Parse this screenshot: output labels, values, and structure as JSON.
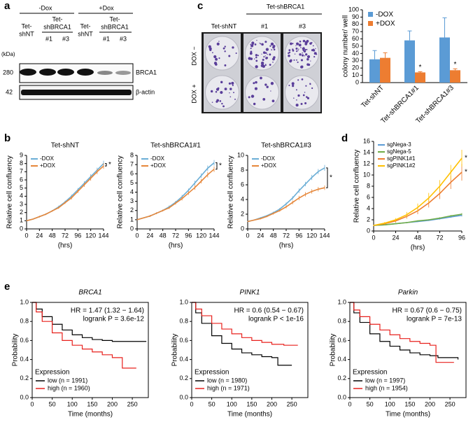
{
  "panel_labels": [
    "a",
    "b",
    "c",
    "d",
    "e"
  ],
  "blot": {
    "groups": [
      "-Dox",
      "+Dox"
    ],
    "lanes": [
      [
        "Tet-",
        "shNT"
      ],
      [
        "Tet-",
        "shBRCA1"
      ],
      [
        "Tet-",
        "shNT"
      ],
      [
        "Tet-",
        "shBRCA1"
      ]
    ],
    "clones": [
      "#1",
      "#3",
      "#1",
      "#3"
    ],
    "unit": "(kDa)",
    "markers": [
      "280",
      "42"
    ],
    "proteins": [
      "BRCA1",
      "β-actin"
    ]
  },
  "colony": {
    "group": "Tet-shBRCA1",
    "columns": [
      "Tet-shNT",
      "#1",
      "#3"
    ],
    "rows": [
      "DOX −",
      "DOX +"
    ]
  },
  "chart_data": [
    {
      "type": "bar",
      "y_label": "colony number/ well",
      "categories": [
        "Tet-shNT",
        "Tet-shBRCA1#1",
        "Tet-shBRCA1#3"
      ],
      "series": [
        {
          "name": "-DOX",
          "color": "#5b9bd5",
          "values": [
            32,
            58,
            62
          ],
          "errors": [
            12,
            13,
            27
          ],
          "annotations": [
            null,
            null,
            null
          ]
        },
        {
          "name": "+DOX",
          "color": "#ed7d31",
          "values": [
            34,
            14,
            17
          ],
          "errors": [
            7,
            1,
            2
          ],
          "annotations": [
            null,
            "*",
            "*"
          ]
        }
      ],
      "ylim": [
        0,
        100
      ],
      "yticks": [
        0,
        10,
        20,
        30,
        40,
        50,
        60,
        70,
        80,
        90,
        100
      ],
      "legend": "top-left"
    },
    {
      "type": "line",
      "title": "Tet-shNT",
      "y_label": "Relative cell confluency",
      "x_label": "(hrs)",
      "annotation": "*",
      "x": [
        0,
        12,
        24,
        36,
        48,
        60,
        72,
        84,
        96,
        108,
        120,
        132,
        144
      ],
      "series": [
        {
          "name": "-DOX",
          "color": "#6baed6",
          "values": [
            1.0,
            1.2,
            1.5,
            1.8,
            2.2,
            2.7,
            3.3,
            4.0,
            4.8,
            5.6,
            6.4,
            7.2,
            8.0
          ],
          "errors": [
            0.05,
            0.05,
            0.1,
            0.1,
            0.1,
            0.15,
            0.15,
            0.2,
            0.2,
            0.25,
            0.3,
            0.3,
            0.35
          ]
        },
        {
          "name": "+DOX",
          "color": "#e6873a",
          "values": [
            1.0,
            1.2,
            1.5,
            1.8,
            2.2,
            2.6,
            3.2,
            3.8,
            4.6,
            5.4,
            6.2,
            7.0,
            7.7
          ],
          "errors": [
            0.05,
            0.05,
            0.1,
            0.1,
            0.1,
            0.15,
            0.15,
            0.2,
            0.2,
            0.25,
            0.3,
            0.3,
            0.35
          ]
        }
      ],
      "xlim": [
        0,
        144
      ],
      "xticks": [
        0,
        24,
        48,
        72,
        96,
        120,
        144
      ],
      "ylim": [
        0,
        9
      ],
      "yticks": [
        0,
        1,
        2,
        3,
        4,
        5,
        6,
        7,
        8,
        9
      ],
      "legend": "top-left"
    },
    {
      "type": "line",
      "title": "Tet-shBRCA1#1",
      "y_label": "Relative cell confluency",
      "x_label": "(hrs)",
      "annotation": "*",
      "x": [
        0,
        12,
        24,
        36,
        48,
        60,
        72,
        84,
        96,
        108,
        120,
        132,
        144
      ],
      "series": [
        {
          "name": "-DOX",
          "color": "#6baed6",
          "values": [
            1.0,
            1.2,
            1.4,
            1.7,
            2.0,
            2.4,
            2.9,
            3.5,
            4.2,
            5.0,
            5.8,
            6.6,
            7.2
          ],
          "errors": [
            0.05,
            0.05,
            0.1,
            0.1,
            0.1,
            0.15,
            0.15,
            0.2,
            0.2,
            0.25,
            0.25,
            0.3,
            0.3
          ]
        },
        {
          "name": "+DOX",
          "color": "#e6873a",
          "values": [
            1.0,
            1.2,
            1.4,
            1.7,
            2.0,
            2.3,
            2.8,
            3.3,
            3.9,
            4.5,
            5.2,
            5.9,
            6.5
          ],
          "errors": [
            0.05,
            0.05,
            0.1,
            0.1,
            0.1,
            0.15,
            0.15,
            0.2,
            0.2,
            0.25,
            0.25,
            0.3,
            0.3
          ]
        }
      ],
      "xlim": [
        0,
        144
      ],
      "xticks": [
        0,
        24,
        48,
        72,
        96,
        120,
        144
      ],
      "ylim": [
        0,
        8
      ],
      "yticks": [
        0,
        1,
        2,
        3,
        4,
        5,
        6,
        7,
        8
      ],
      "legend": "top-left"
    },
    {
      "type": "line",
      "title": "Tet-shBRCA1#3",
      "y_label": "Relative cell confluency",
      "x_label": "(hrs)",
      "annotation": "*",
      "x": [
        0,
        12,
        24,
        36,
        48,
        60,
        72,
        84,
        96,
        108,
        120,
        132,
        144
      ],
      "series": [
        {
          "name": "-DOX",
          "color": "#6baed6",
          "values": [
            1.0,
            1.2,
            1.5,
            1.8,
            2.2,
            2.7,
            3.4,
            4.2,
            5.2,
            6.1,
            7.0,
            7.8,
            8.3
          ],
          "errors": [
            0.05,
            0.05,
            0.1,
            0.1,
            0.15,
            0.15,
            0.2,
            0.25,
            0.3,
            0.3,
            0.35,
            0.35,
            0.4
          ]
        },
        {
          "name": "+DOX",
          "color": "#e6873a",
          "values": [
            1.0,
            1.2,
            1.4,
            1.7,
            2.1,
            2.5,
            3.0,
            3.6,
            4.2,
            4.7,
            5.1,
            5.4,
            5.6
          ],
          "errors": [
            0.05,
            0.05,
            0.1,
            0.1,
            0.15,
            0.15,
            0.2,
            0.25,
            0.3,
            0.3,
            0.3,
            0.3,
            0.3
          ]
        }
      ],
      "xlim": [
        0,
        144
      ],
      "xticks": [
        0,
        24,
        48,
        72,
        96,
        120,
        144
      ],
      "ylim": [
        0,
        10
      ],
      "yticks": [
        0,
        2,
        4,
        6,
        8,
        10
      ],
      "legend": "top-left"
    },
    {
      "type": "line",
      "y_label": "Relative cell confluency",
      "x_label": "(hrs)",
      "x": [
        0,
        12,
        24,
        36,
        48,
        60,
        72,
        84,
        96
      ],
      "series": [
        {
          "name": "sgNega-3",
          "color": "#5b9bd5",
          "values": [
            1.0,
            1.1,
            1.3,
            1.5,
            1.7,
            1.9,
            2.2,
            2.5,
            2.8
          ],
          "errors": [
            0.05,
            0.05,
            0.1,
            0.1,
            0.1,
            0.1,
            0.15,
            0.15,
            0.2
          ],
          "annotation": null
        },
        {
          "name": "sgNega-5",
          "color": "#70ad47",
          "values": [
            1.0,
            1.1,
            1.3,
            1.5,
            1.8,
            2.0,
            2.3,
            2.7,
            3.0
          ],
          "errors": [
            0.05,
            0.05,
            0.1,
            0.1,
            0.1,
            0.1,
            0.15,
            0.15,
            0.2
          ],
          "annotation": null
        },
        {
          "name": "sgPINK1#1",
          "color": "#ed7d31",
          "values": [
            1.0,
            1.3,
            1.8,
            2.6,
            3.6,
            5.0,
            6.7,
            8.7,
            10.5
          ],
          "errors": [
            0.1,
            0.2,
            0.3,
            0.4,
            0.6,
            0.8,
            1.0,
            1.2,
            1.5
          ],
          "annotation": "*"
        },
        {
          "name": "sgPINK1#2",
          "color": "#ffc000",
          "values": [
            1.0,
            1.4,
            2.0,
            2.9,
            4.2,
            5.9,
            8.0,
            10.5,
            13.0
          ],
          "errors": [
            0.1,
            0.2,
            0.3,
            0.5,
            0.7,
            0.9,
            1.1,
            1.3,
            1.5
          ],
          "annotation": "*"
        }
      ],
      "xlim": [
        0,
        96
      ],
      "xticks": [
        0,
        24,
        48,
        72,
        96
      ],
      "ylim": [
        0,
        16
      ],
      "yticks": [
        0,
        2,
        4,
        6,
        8,
        10,
        12,
        14,
        16
      ],
      "legend": "top-left"
    },
    {
      "type": "survival",
      "title": "BRCA1",
      "hr": "HR = 1.47 (1.32 − 1.64)",
      "logrank": "logrank P = 3.6e-12",
      "y_label": "Probability",
      "x_label": "Time (months)",
      "legend_title": "Expression",
      "series": [
        {
          "name": "low  (n = 1991)",
          "color": "#000000",
          "x": [
            0,
            10,
            25,
            50,
            75,
            100,
            125,
            150,
            175,
            200,
            225,
            250,
            285
          ],
          "values": [
            1,
            0.93,
            0.85,
            0.77,
            0.71,
            0.66,
            0.63,
            0.61,
            0.6,
            0.59,
            0.59,
            0.59,
            0.59
          ]
        },
        {
          "name": "high (n = 1960)",
          "color": "#e8201c",
          "x": [
            0,
            10,
            25,
            50,
            75,
            100,
            125,
            150,
            175,
            200,
            225,
            260
          ],
          "values": [
            1,
            0.9,
            0.8,
            0.68,
            0.6,
            0.55,
            0.51,
            0.48,
            0.45,
            0.42,
            0.31,
            0.31
          ]
        }
      ],
      "xlim": [
        0,
        290
      ],
      "xticks": [
        0,
        50,
        100,
        150,
        200,
        250
      ],
      "ylim": [
        0,
        1
      ],
      "yticks": [
        {
          "value": 0,
          "label": "0.0"
        },
        0.2,
        0.4,
        0.6,
        0.8,
        {
          "value": 1,
          "label": "1.0"
        }
      ],
      "legend": "bottom-left"
    },
    {
      "type": "survival",
      "title": "PINK1",
      "hr": "HR = 0.6 (0.54 − 0.67)",
      "logrank": "logrank P < 1e-16",
      "y_label": "Probability",
      "x_label": "Time (months)",
      "legend_title": "Expression",
      "series": [
        {
          "name": "low  (n = 1980)",
          "color": "#000000",
          "x": [
            0,
            10,
            25,
            50,
            75,
            100,
            125,
            150,
            175,
            200,
            215,
            250
          ],
          "values": [
            1,
            0.89,
            0.78,
            0.65,
            0.57,
            0.51,
            0.47,
            0.45,
            0.43,
            0.42,
            0.34,
            0.34
          ]
        },
        {
          "name": "high (n = 1971)",
          "color": "#e8201c",
          "x": [
            0,
            10,
            25,
            50,
            75,
            100,
            125,
            150,
            175,
            200,
            230,
            265
          ],
          "values": [
            1,
            0.93,
            0.86,
            0.78,
            0.72,
            0.67,
            0.63,
            0.6,
            0.58,
            0.56,
            0.55,
            0.55
          ]
        }
      ],
      "xlim": [
        0,
        290
      ],
      "xticks": [
        0,
        50,
        100,
        150,
        200,
        250
      ],
      "ylim": [
        0,
        1
      ],
      "yticks": [
        {
          "value": 0,
          "label": "0.0"
        },
        0.2,
        0.4,
        0.6,
        0.8,
        {
          "value": 1,
          "label": "1.0"
        }
      ],
      "legend": "bottom-left"
    },
    {
      "type": "survival",
      "title": "Parkin",
      "hr": "HR = 0.67 (0.6 − 0.75)",
      "logrank": "logrank P = 7e-13",
      "y_label": "Probability",
      "x_label": "Time (months)",
      "legend_title": "Expression",
      "series": [
        {
          "name": "low  (n = 1997)",
          "color": "#000000",
          "x": [
            0,
            10,
            25,
            50,
            75,
            100,
            125,
            150,
            175,
            200,
            220,
            270
          ],
          "values": [
            1,
            0.89,
            0.79,
            0.67,
            0.59,
            0.54,
            0.5,
            0.47,
            0.45,
            0.44,
            0.42,
            0.4
          ]
        },
        {
          "name": "high (n = 1954)",
          "color": "#e8201c",
          "x": [
            0,
            10,
            25,
            50,
            75,
            100,
            125,
            150,
            175,
            200,
            215,
            260
          ],
          "values": [
            1,
            0.92,
            0.85,
            0.77,
            0.71,
            0.66,
            0.62,
            0.59,
            0.57,
            0.55,
            0.37,
            0.37
          ]
        }
      ],
      "xlim": [
        0,
        290
      ],
      "xticks": [
        0,
        50,
        100,
        150,
        200,
        250
      ],
      "ylim": [
        0,
        1
      ],
      "yticks": [
        {
          "value": 0,
          "label": "0.0"
        },
        0.2,
        0.4,
        0.6,
        0.8,
        {
          "value": 1,
          "label": "1.0"
        }
      ],
      "legend": "bottom-left"
    }
  ]
}
